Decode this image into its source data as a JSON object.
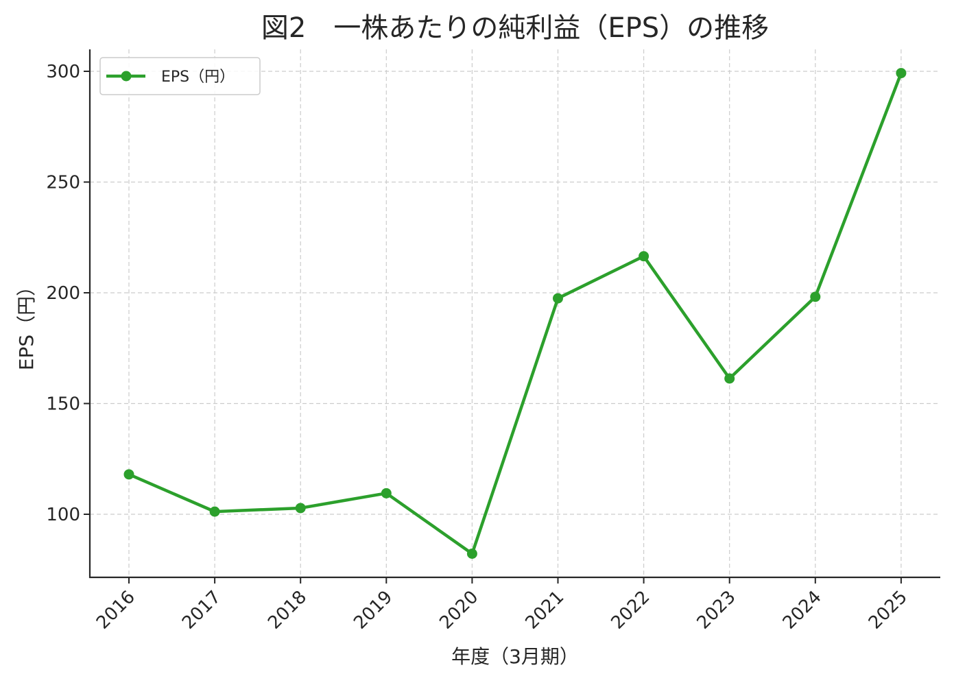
{
  "colors": {
    "series": "#2ca02c",
    "axis": "#262626",
    "grid": "#cccccc",
    "background": "#ffffff"
  },
  "chart_data": {
    "type": "line",
    "title": "図2　一株あたりの純利益（EPS）の推移",
    "xlabel": "年度（3月期）",
    "ylabel": "EPS（円）",
    "categories": [
      "2016",
      "2017",
      "2018",
      "2019",
      "2020",
      "2021",
      "2022",
      "2023",
      "2024",
      "2025"
    ],
    "series": [
      {
        "name": "EPS（円）",
        "values": [
          118,
          101.2,
          102.8,
          109.5,
          82.2,
          197.5,
          216.5,
          161.3,
          198.2,
          299.2
        ],
        "marker": "circle"
      }
    ],
    "yticks": [
      100,
      150,
      200,
      250,
      300
    ],
    "ylim": [
      72,
      310
    ],
    "grid": true,
    "legend_position": "top-left",
    "xtick_rotation": 45
  }
}
